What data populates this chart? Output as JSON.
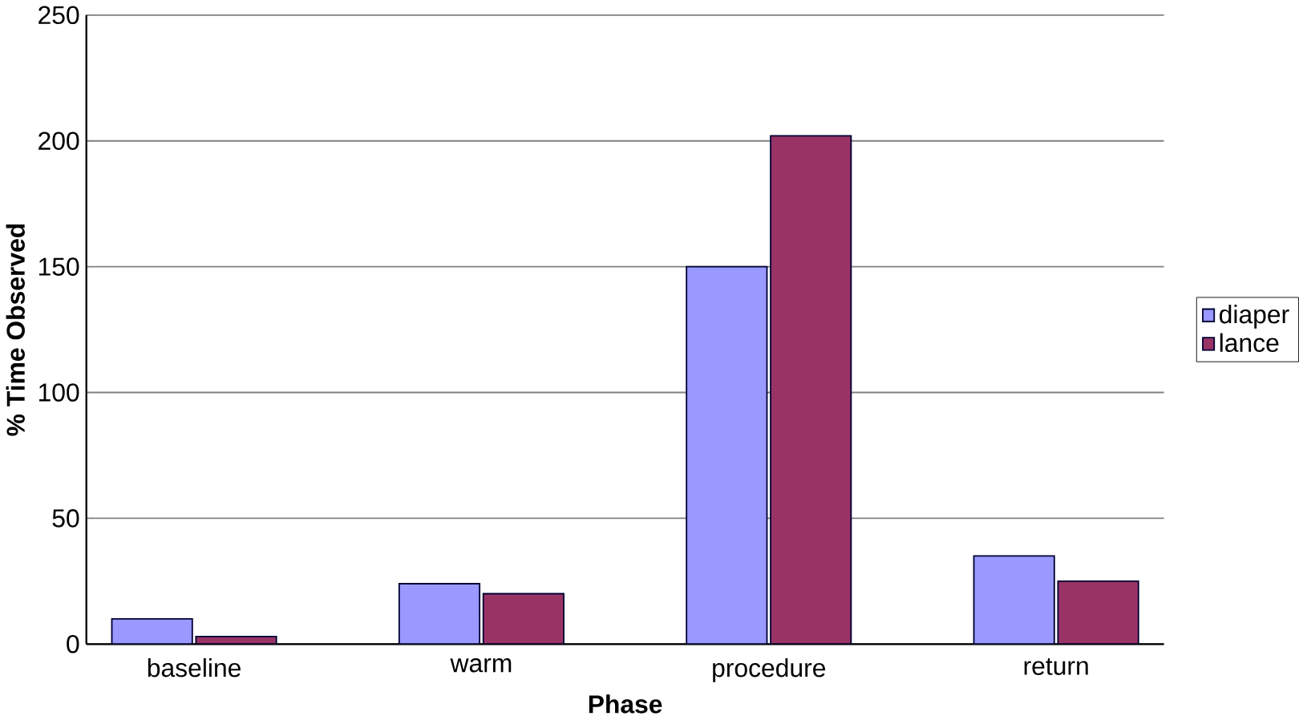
{
  "chart_data": {
    "type": "bar",
    "xlabel": "Phase",
    "ylabel": "% Time Observed",
    "categories": [
      "baseline",
      "warm",
      "procedure",
      "return"
    ],
    "series": [
      {
        "name": "diaper",
        "color": "#9999ff",
        "values": [
          10,
          24,
          150,
          35
        ]
      },
      {
        "name": "lance",
        "color": "#993366",
        "values": [
          3,
          20,
          202,
          25
        ]
      }
    ],
    "ylim": [
      0,
      250
    ],
    "yticks": [
      0,
      50,
      100,
      150,
      200,
      250
    ],
    "grid": "y",
    "legend": "right"
  }
}
